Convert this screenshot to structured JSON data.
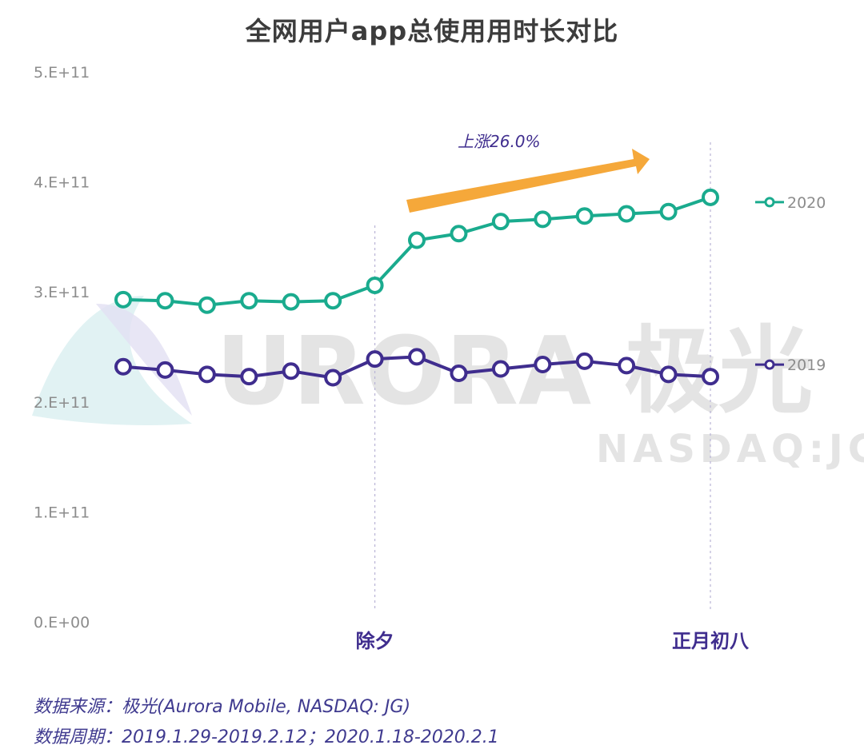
{
  "chart_data": {
    "type": "line",
    "title": "全网用户app总使用用时长对比",
    "yticks": [
      "0.E+00",
      "1.E+11",
      "2.E+11",
      "3.E+11",
      "4.E+11",
      "5.E+11"
    ],
    "ylim": [
      0,
      500000000000.0
    ],
    "x_count": 15,
    "xlabels": [
      {
        "index": 6,
        "label": "除夕"
      },
      {
        "index": 14,
        "label": "正月初八"
      }
    ],
    "series": [
      {
        "name": "2020",
        "color": "#1aab8e",
        "values": [
          293000000000.0,
          292000000000.0,
          288000000000.0,
          292000000000.0,
          291000000000.0,
          292000000000.0,
          306000000000.0,
          347000000000.0,
          353000000000.0,
          364000000000.0,
          366000000000.0,
          369000000000.0,
          371000000000.0,
          373000000000.0,
          386000000000.0
        ]
      },
      {
        "name": "2019",
        "color": "#3f2d8e",
        "values": [
          232000000000.0,
          229000000000.0,
          225000000000.0,
          223000000000.0,
          228000000000.0,
          222000000000.0,
          239000000000.0,
          241000000000.0,
          226000000000.0,
          230000000000.0,
          234000000000.0,
          237000000000.0,
          233000000000.0,
          225000000000.0,
          223000000000.0
        ]
      }
    ],
    "annotation": {
      "label": "上涨26.0%",
      "color": "#f5a83a"
    }
  },
  "watermark": {
    "text": "URORA 极光",
    "sub": "NASDAQ:JG"
  },
  "source": {
    "line1": "数据来源：极光(Aurora Mobile, NASDAQ: JG)",
    "line2": "数据周期：2019.1.29-2019.2.12；2020.1.18-2020.2.1"
  }
}
